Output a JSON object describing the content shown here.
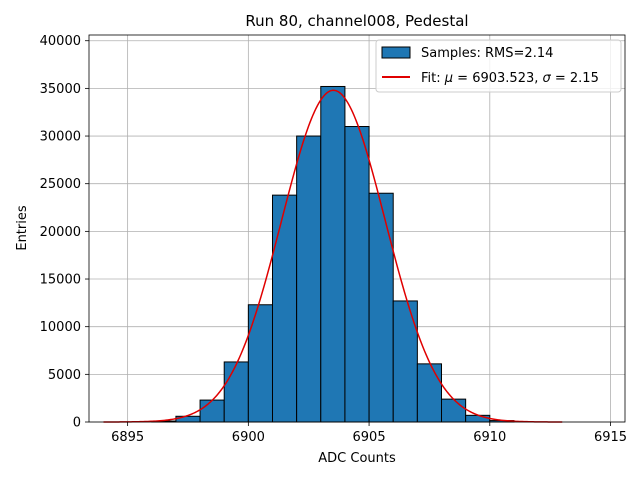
{
  "chart_data": {
    "type": "bar",
    "title": "Run 80, channel008, Pedestal",
    "xlabel": "ADC Counts",
    "ylabel": "Entries",
    "xlim": [
      6893.4,
      6915.6
    ],
    "ylim": [
      0,
      40600
    ],
    "xticks": [
      6895,
      6900,
      6905,
      6910,
      6915
    ],
    "yticks": [
      0,
      5000,
      10000,
      15000,
      20000,
      25000,
      30000,
      35000,
      40000
    ],
    "grid": true,
    "legend_position": "top-right",
    "bin_width": 1,
    "histogram": {
      "name": "Samples: RMS=2.14",
      "color": "#1f77b4",
      "bins": [
        {
          "x0": 6896,
          "count": 100
        },
        {
          "x0": 6897,
          "count": 600
        },
        {
          "x0": 6898,
          "count": 2300
        },
        {
          "x0": 6899,
          "count": 6300
        },
        {
          "x0": 6900,
          "count": 12300
        },
        {
          "x0": 6901,
          "count": 23800
        },
        {
          "x0": 6902,
          "count": 30000
        },
        {
          "x0": 6903,
          "count": 35200
        },
        {
          "x0": 6904,
          "count": 31000
        },
        {
          "x0": 6905,
          "count": 24000
        },
        {
          "x0": 6906,
          "count": 12700
        },
        {
          "x0": 6907,
          "count": 6100
        },
        {
          "x0": 6908,
          "count": 2400
        },
        {
          "x0": 6909,
          "count": 700
        },
        {
          "x0": 6910,
          "count": 150
        }
      ]
    },
    "fit": {
      "name_prefix": "Fit: ",
      "mu_symbol": "μ",
      "sigma_symbol": "σ",
      "mu_text": " = 6903.523, ",
      "sigma_text": " = 2.15",
      "color": "#e00000",
      "mu": 6903.523,
      "sigma": 2.15,
      "amplitude": 34800,
      "x_range": [
        6894,
        6913
      ]
    }
  }
}
